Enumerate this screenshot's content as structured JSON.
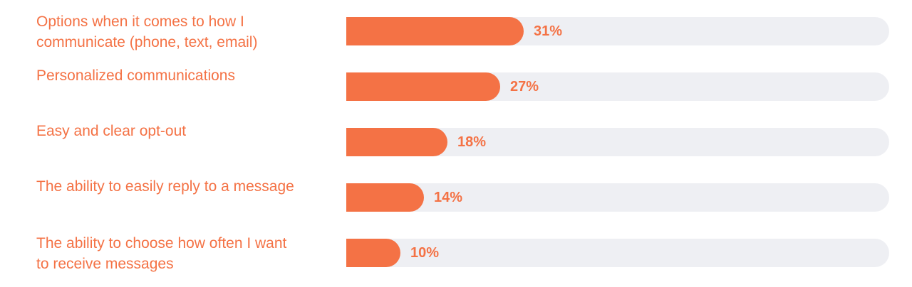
{
  "chart_data": {
    "type": "bar",
    "orientation": "horizontal",
    "categories": [
      "Options when it comes to how I communicate (phone, text, email)",
      "Personalized communications",
      "Easy and clear opt-out",
      "The ability to easily reply to a message",
      "The ability to choose how often I want to receive messages"
    ],
    "label_lines": [
      [
        "Options when it comes to how I",
        "communicate (phone, text, email)"
      ],
      [
        "Personalized communications"
      ],
      [
        "Easy and clear opt-out"
      ],
      [
        "The ability to easily reply to a message"
      ],
      [
        "The ability to choose how often I want",
        "to receive messages"
      ]
    ],
    "values": [
      31,
      27,
      18,
      14,
      10
    ],
    "value_labels": [
      "31%",
      "27%",
      "18%",
      "14%",
      "10%"
    ],
    "xlim": [
      0,
      100
    ],
    "grid": false,
    "title": "",
    "xlabel": "",
    "ylabel": ""
  },
  "colors": {
    "bar": "#f47245",
    "track": "#eeeff3",
    "label": "#f47245"
  }
}
